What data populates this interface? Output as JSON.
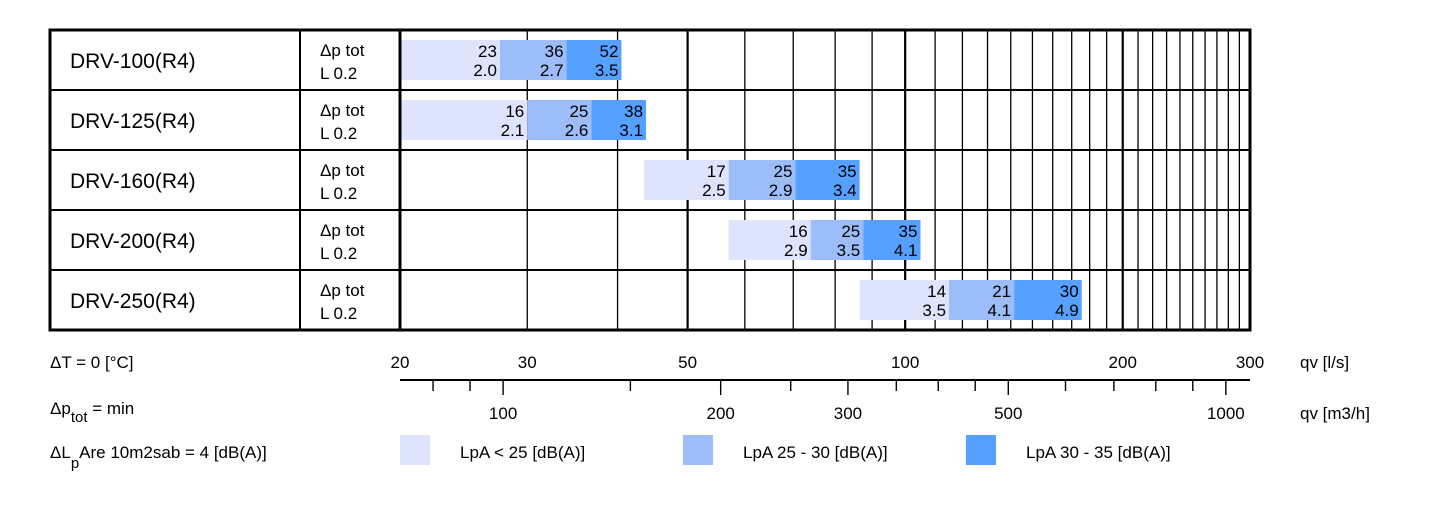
{
  "chart_data": {
    "type": "bar",
    "title": "",
    "x_axis": {
      "label": "qv [l/s]",
      "scale": "log",
      "range": [
        20,
        300
      ],
      "ticks": [
        20,
        30,
        50,
        100,
        200,
        300
      ],
      "tick_labels": [
        "20",
        "30",
        "50",
        "100",
        "200",
        "300"
      ],
      "grid": true
    },
    "secondary_axis": {
      "label": "qv [m3/h]",
      "ticks": [
        100,
        200,
        300,
        500,
        1000
      ],
      "tick_labels": [
        "100",
        "200",
        "300",
        "500",
        "1000"
      ]
    },
    "rows": [
      {
        "name": "DRV-100(R4)",
        "dp_label": "Δp tot",
        "l_label": "L 0.2",
        "segments": [
          {
            "class": "lpa_lt25",
            "from": 20,
            "to": 27.5,
            "dp": "23",
            "l": "2.0"
          },
          {
            "class": "lpa_25_30",
            "from": 27.5,
            "to": 34,
            "dp": "36",
            "l": "2.7"
          },
          {
            "class": "lpa_30_35",
            "from": 34,
            "to": 40.5,
            "dp": "52",
            "l": "3.5"
          }
        ]
      },
      {
        "name": "DRV-125(R4)",
        "dp_label": "Δp tot",
        "l_label": "L 0.2",
        "segments": [
          {
            "class": "lpa_lt25",
            "from": 20,
            "to": 30,
            "dp": "16",
            "l": "2.1"
          },
          {
            "class": "lpa_25_30",
            "from": 30,
            "to": 36.8,
            "dp": "25",
            "l": "2.6"
          },
          {
            "class": "lpa_30_35",
            "from": 36.8,
            "to": 43.8,
            "dp": "38",
            "l": "3.1"
          }
        ]
      },
      {
        "name": "DRV-160(R4)",
        "dp_label": "Δp tot",
        "l_label": "L 0.2",
        "segments": [
          {
            "class": "lpa_lt25",
            "from": 43.5,
            "to": 57,
            "dp": "17",
            "l": "2.5"
          },
          {
            "class": "lpa_25_30",
            "from": 57,
            "to": 70.5,
            "dp": "25",
            "l": "2.9"
          },
          {
            "class": "lpa_30_35",
            "from": 70.5,
            "to": 86.5,
            "dp": "35",
            "l": "3.4"
          }
        ]
      },
      {
        "name": "DRV-200(R4)",
        "dp_label": "Δp tot",
        "l_label": "L 0.2",
        "segments": [
          {
            "class": "lpa_lt25",
            "from": 57,
            "to": 74,
            "dp": "16",
            "l": "2.9"
          },
          {
            "class": "lpa_25_30",
            "from": 74,
            "to": 87.5,
            "dp": "25",
            "l": "3.5"
          },
          {
            "class": "lpa_30_35",
            "from": 87.5,
            "to": 105,
            "dp": "35",
            "l": "4.1"
          }
        ]
      },
      {
        "name": "DRV-250(R4)",
        "dp_label": "Δp tot",
        "l_label": "L 0.2",
        "segments": [
          {
            "class": "lpa_lt25",
            "from": 86.5,
            "to": 115,
            "dp": "14",
            "l": "3.5"
          },
          {
            "class": "lpa_25_30",
            "from": 115,
            "to": 141.5,
            "dp": "21",
            "l": "4.1"
          },
          {
            "class": "lpa_30_35",
            "from": 141.5,
            "to": 175.5,
            "dp": "30",
            "l": "4.9"
          }
        ]
      }
    ],
    "legend": [
      {
        "key": "lpa_lt25",
        "label": "LpA < 25 [dB(A)]",
        "color": "#dde4fc"
      },
      {
        "key": "lpa_25_30",
        "label": "LpA 25 - 30 [dB(A)]",
        "color": "#9dbdf8"
      },
      {
        "key": "lpa_30_35",
        "label": "LpA 30 - 35 [dB(A)]",
        "color": "#56a0ff"
      }
    ],
    "notes": {
      "delta_t": "ΔT = 0 [°C]",
      "dp_prefix": "Δp",
      "dp_sub": "tot",
      "dp_suffix": " = min",
      "dl_prefix": "ΔL",
      "dl_sub": "p",
      "dl_suffix": "Are 10m2sab = 4 [dB(A)]"
    }
  }
}
